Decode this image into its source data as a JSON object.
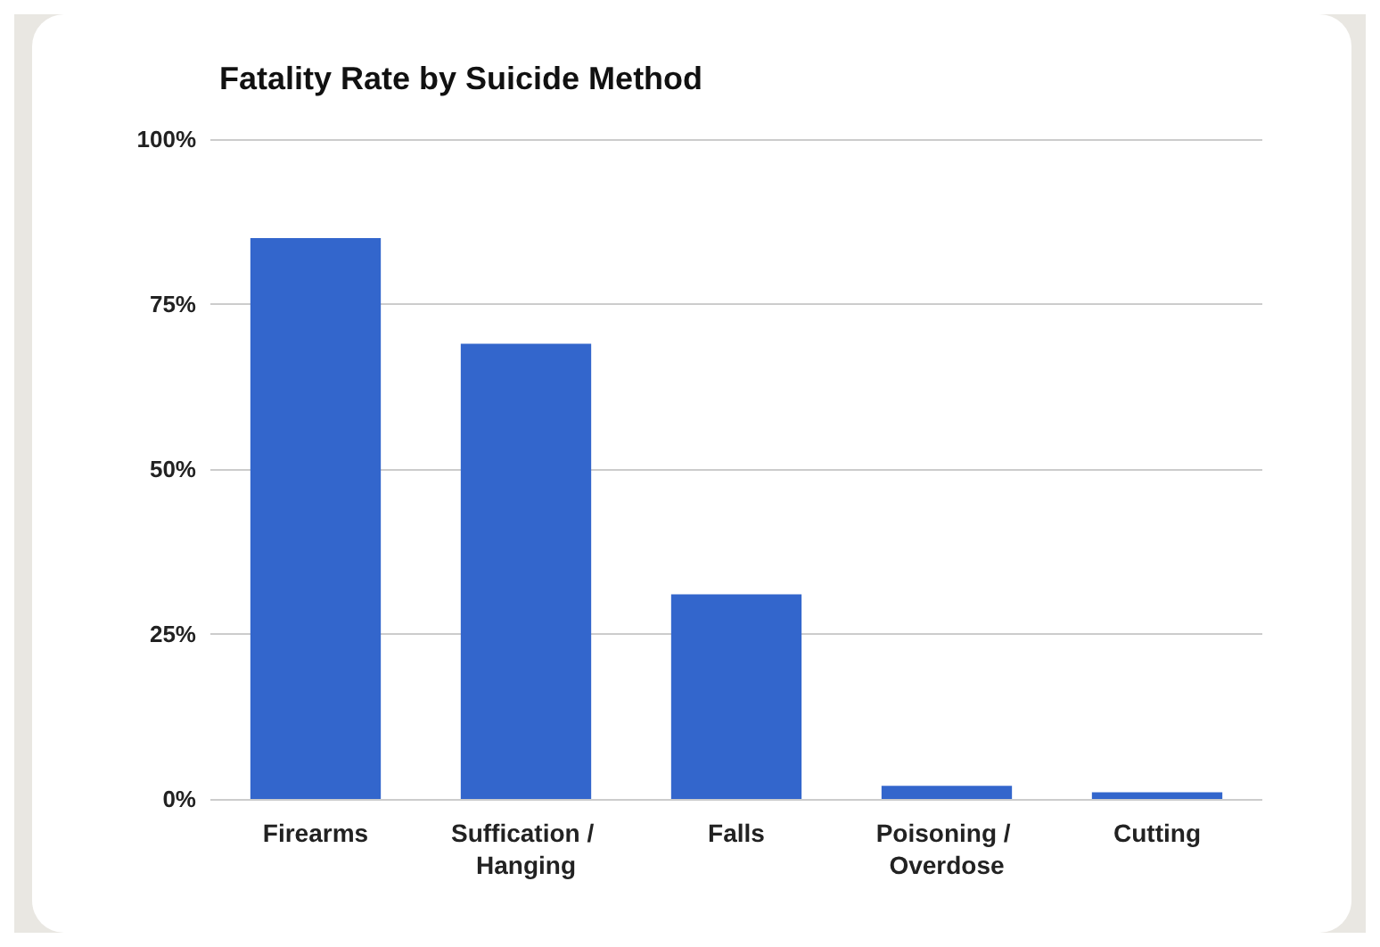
{
  "chart_data": {
    "type": "bar",
    "title": "Fatality Rate by Suicide Method",
    "categories": [
      "Firearms",
      "Suffication / Hanging",
      "Falls",
      "Poisoning / Overdose",
      "Cutting"
    ],
    "values": [
      85,
      69,
      31,
      2,
      1
    ],
    "color": "#3366cc",
    "ylim": [
      0,
      100
    ],
    "yticks": [
      {
        "value": 0,
        "label": "0%"
      },
      {
        "value": 25,
        "label": "25%"
      },
      {
        "value": 50,
        "label": "50%"
      },
      {
        "value": 75,
        "label": "75%"
      },
      {
        "value": 100,
        "label": "100%"
      }
    ],
    "grid": "y"
  }
}
